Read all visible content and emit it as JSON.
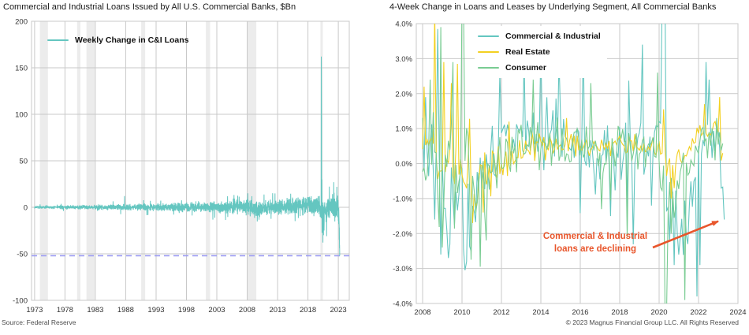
{
  "page": {
    "source_note": "Source: Federal Reserve",
    "copyright": "© 2023 Magnus Financial Group LLC. All Rights Reserved"
  },
  "colors": {
    "teal": "#64c6c0",
    "yellow": "#f3d021",
    "green": "#79cc92",
    "annotation_orange": "#e8562c",
    "reference_purple": "#9a9af2",
    "recession_band": "#ececec",
    "gridline": "#c9c9c9"
  },
  "chart_data": [
    {
      "type": "line",
      "title": "Commercial and Industrial Loans Issued by All U.S. Commercial Banks, $Bn",
      "xlabel": "",
      "ylabel": "",
      "xlim": [
        1972.5,
        2024.8
      ],
      "ylim": [
        -100,
        200
      ],
      "grid": true,
      "legend_position": "top-left-inside",
      "yticks": [
        [
          200,
          "200"
        ],
        [
          150,
          "150"
        ],
        [
          100,
          "100"
        ],
        [
          50,
          "50"
        ],
        [
          0,
          "0"
        ],
        [
          -50,
          "-50"
        ],
        [
          -100,
          "-100"
        ]
      ],
      "xticks": [
        [
          1973,
          "1973"
        ],
        [
          1978,
          "1978"
        ],
        [
          1983,
          "1983"
        ],
        [
          1988,
          "1988"
        ],
        [
          1993,
          "1993"
        ],
        [
          1998,
          "1998"
        ],
        [
          2003,
          "2003"
        ],
        [
          2008,
          "2008"
        ],
        [
          2013,
          "2013"
        ],
        [
          2018,
          "2018"
        ],
        [
          2023,
          "2023"
        ]
      ],
      "recession_bands": [
        [
          1973.87,
          1975.2
        ],
        [
          1980.0,
          1980.55
        ],
        [
          1981.55,
          1982.9
        ],
        [
          1990.55,
          1991.2
        ],
        [
          2001.2,
          2001.9
        ],
        [
          2007.95,
          2009.5
        ],
        [
          2020.05,
          2020.45
        ]
      ],
      "reference_line": {
        "y": -52,
        "style": "dashed"
      },
      "key_values": {
        "peak_2020": 162,
        "trough_2020": -38,
        "end_2023": -52
      },
      "series": [
        {
          "name": "Weekly Change in C&I Loans",
          "color": "#64c6c0",
          "seed": 7,
          "step_years": 0.01923,
          "x_start": 1973.0,
          "x_end": 2023.25,
          "mean": [
            [
              1973,
              0
            ],
            [
              2008,
              0.5
            ],
            [
              2009.5,
              -2
            ],
            [
              2011,
              0
            ],
            [
              2019.9,
              2
            ],
            [
              2020.35,
              -10
            ],
            [
              2020.8,
              -6
            ],
            [
              2021.5,
              0
            ],
            [
              2022.4,
              4
            ],
            [
              2022.9,
              2
            ],
            [
              2023.08,
              -5
            ],
            [
              2023.25,
              -48
            ]
          ],
          "amp": [
            [
              1973,
              1
            ],
            [
              1978,
              1.5
            ],
            [
              1983,
              2
            ],
            [
              1988,
              2.5
            ],
            [
              1993,
              3
            ],
            [
              1998,
              4
            ],
            [
              2003,
              4.5
            ],
            [
              2008,
              7
            ],
            [
              2009,
              7
            ],
            [
              2012,
              6
            ],
            [
              2016,
              7
            ],
            [
              2019,
              8
            ],
            [
              2020,
              10
            ],
            [
              2021,
              10
            ],
            [
              2023.25,
              11
            ]
          ],
          "spikes": [
            [
              1987.8,
              12
            ],
            [
              2020.19,
              162
            ],
            [
              2020.21,
              148
            ],
            [
              2020.23,
              96
            ],
            [
              2020.29,
              30
            ],
            [
              2020.38,
              -20
            ],
            [
              2020.46,
              -38
            ],
            [
              2020.55,
              -30
            ],
            [
              2020.65,
              -25
            ],
            [
              2021.0,
              -15
            ],
            [
              2022.75,
              22
            ],
            [
              2023.05,
              -18
            ],
            [
              2023.15,
              -35
            ],
            [
              2023.19,
              -44
            ],
            [
              2023.23,
              -52
            ],
            [
              2023.25,
              -52
            ]
          ]
        }
      ]
    },
    {
      "type": "line",
      "title": "4-Week Change in Loans and Leases by Underlying Segment, All Commercial Banks",
      "xlabel": "",
      "ylabel": "",
      "xlim": [
        2007.68,
        2024.0
      ],
      "ylim": [
        -4,
        4
      ],
      "grid": true,
      "legend_position": "top-inside",
      "yticks": [
        [
          4,
          "4.0%"
        ],
        [
          3,
          "3.0%"
        ],
        [
          2,
          "2.0%"
        ],
        [
          1,
          "1.0%"
        ],
        [
          0,
          "0.0%"
        ],
        [
          -1,
          "-1.0%"
        ],
        [
          -2,
          "-2.0%"
        ],
        [
          -3,
          "-3.0%"
        ],
        [
          -4,
          "-4.0%"
        ]
      ],
      "xticks": [
        [
          2008,
          "2008"
        ],
        [
          2010,
          "2010"
        ],
        [
          2012,
          "2012"
        ],
        [
          2014,
          "2014"
        ],
        [
          2016,
          "2016"
        ],
        [
          2018,
          "2018"
        ],
        [
          2020,
          "2020"
        ],
        [
          2022,
          "2022"
        ],
        [
          2024,
          "2024"
        ]
      ],
      "annotation": {
        "lines": [
          "Commercial & Industrial",
          "loans are declining"
        ],
        "color": "#e8562c"
      },
      "arrow": {
        "from": [
          2019.68,
          -2.4
        ],
        "to": [
          2023.0,
          -1.65
        ],
        "color": "#e8562c"
      },
      "key_values": {
        "ci_end_2023": -1.6,
        "real_estate_end_spike": 1.9,
        "consumer_end": 0.4
      },
      "series": [
        {
          "name": "Commercial & Industrial",
          "color": "#64c6c0",
          "seed": 5,
          "step_years": 0.0769,
          "x_start": 2008.0,
          "x_end": 2023.33,
          "mean": [
            [
              2008,
              0.4
            ],
            [
              2008.7,
              0.1
            ],
            [
              2009.2,
              -1.2
            ],
            [
              2010.3,
              -1.4
            ],
            [
              2010.9,
              -0.4
            ],
            [
              2011.4,
              0.4
            ],
            [
              2012.2,
              0.9
            ],
            [
              2015.5,
              0.8
            ],
            [
              2016.5,
              0.3
            ],
            [
              2017.5,
              0.2
            ],
            [
              2019.7,
              0.5
            ],
            [
              2020.1,
              1.2
            ],
            [
              2020.5,
              -1.2
            ],
            [
              2021.1,
              -1.6
            ],
            [
              2021.6,
              -0.8
            ],
            [
              2021.9,
              0.2
            ],
            [
              2022.4,
              1.0
            ],
            [
              2022.8,
              0.8
            ],
            [
              2023.05,
              0.1
            ],
            [
              2023.33,
              -1.2
            ]
          ],
          "amp": [
            [
              2008,
              1.3
            ],
            [
              2010.5,
              1.2
            ],
            [
              2011.5,
              0.85
            ],
            [
              2019.7,
              0.85
            ],
            [
              2020.4,
              1.3
            ],
            [
              2021.6,
              1.0
            ],
            [
              2022.2,
              0.7
            ],
            [
              2023.33,
              0.45
            ]
          ],
          "spikes": [
            [
              2008.12,
              1.9
            ],
            [
              2008.6,
              -1.6
            ],
            [
              2008.75,
              3.85
            ],
            [
              2008.95,
              -2.6
            ],
            [
              2009.3,
              -2.7
            ],
            [
              2010.15,
              -3.05
            ],
            [
              2010.45,
              -2.5
            ],
            [
              2011.9,
              2.6
            ],
            [
              2013.15,
              3.0
            ],
            [
              2014.0,
              3.3
            ],
            [
              2014.95,
              3.0
            ],
            [
              2016.15,
              3.55
            ],
            [
              2017.5,
              -1.5
            ],
            [
              2019.15,
              3.4
            ],
            [
              2019.6,
              -1.2
            ],
            [
              2020.16,
              4.6
            ],
            [
              2020.22,
              4.9
            ],
            [
              2020.28,
              4.4
            ],
            [
              2020.55,
              -2.2
            ],
            [
              2020.75,
              -2.9
            ],
            [
              2021.0,
              -2.6
            ],
            [
              2021.45,
              -2.3
            ],
            [
              2021.95,
              -3.8
            ],
            [
              2022.1,
              -2.9
            ],
            [
              2022.4,
              2.9
            ],
            [
              2022.55,
              2.4
            ],
            [
              2023.0,
              1.0
            ],
            [
              2023.15,
              -0.7
            ],
            [
              2023.28,
              -1.0
            ],
            [
              2023.33,
              -1.6
            ]
          ]
        },
        {
          "name": "Real Estate",
          "color": "#f3d021",
          "seed": 9,
          "step_years": 0.0769,
          "x_start": 2008.0,
          "x_end": 2023.3,
          "mean": [
            [
              2008,
              0.35
            ],
            [
              2009,
              0
            ],
            [
              2009.8,
              -0.4
            ],
            [
              2010.8,
              -0.55
            ],
            [
              2011.8,
              -0.1
            ],
            [
              2013,
              0.25
            ],
            [
              2014,
              0.5
            ],
            [
              2019.5,
              0.5
            ],
            [
              2020.3,
              0.2
            ],
            [
              2020.8,
              -0.25
            ],
            [
              2021.3,
              0.3
            ],
            [
              2022,
              0.75
            ],
            [
              2022.6,
              1.0
            ],
            [
              2023.05,
              0.8
            ],
            [
              2023.3,
              -0.4
            ]
          ],
          "amp": [
            [
              2008,
              0.85
            ],
            [
              2010,
              0.75
            ],
            [
              2012,
              0.4
            ],
            [
              2014,
              0.28
            ],
            [
              2019.5,
              0.28
            ],
            [
              2020.3,
              0.45
            ],
            [
              2021.5,
              0.3
            ],
            [
              2023.3,
              0.35
            ]
          ],
          "spikes": [
            [
              2008.1,
              2.2
            ],
            [
              2008.6,
              4.4
            ],
            [
              2009.1,
              2.9
            ],
            [
              2009.45,
              2.3
            ],
            [
              2009.75,
              2.85
            ],
            [
              2010.5,
              -1.7
            ],
            [
              2011.1,
              -1.4
            ],
            [
              2012.4,
              1.2
            ],
            [
              2015.3,
              1.3
            ],
            [
              2020.25,
              1.55
            ],
            [
              2020.6,
              -1.0
            ],
            [
              2022.3,
              1.7
            ],
            [
              2023.08,
              1.9
            ],
            [
              2023.2,
              0.3
            ],
            [
              2023.3,
              -0.7
            ]
          ]
        },
        {
          "name": "Consumer",
          "color": "#79cc92",
          "seed": 3,
          "step_years": 0.0769,
          "x_start": 2008.0,
          "x_end": 2023.3,
          "mean": [
            [
              2008,
              0.2
            ],
            [
              2009.2,
              -0.2
            ],
            [
              2010.2,
              -0.6
            ],
            [
              2011.0,
              -0.7
            ],
            [
              2011.8,
              0.2
            ],
            [
              2012.5,
              0.5
            ],
            [
              2019.8,
              0.55
            ],
            [
              2020.35,
              -1.2
            ],
            [
              2020.9,
              -0.5
            ],
            [
              2021.4,
              -0.2
            ],
            [
              2022,
              0.5
            ],
            [
              2023.3,
              0.5
            ]
          ],
          "amp": [
            [
              2008,
              1.2
            ],
            [
              2010.5,
              1.1
            ],
            [
              2011.8,
              0.7
            ],
            [
              2012.8,
              0.55
            ],
            [
              2019.8,
              0.55
            ],
            [
              2020.6,
              1.0
            ],
            [
              2021.6,
              0.5
            ],
            [
              2023.3,
              0.35
            ]
          ],
          "spikes": [
            [
              2008.35,
              2.4
            ],
            [
              2008.9,
              3.9
            ],
            [
              2009.0,
              -2.4
            ],
            [
              2009.5,
              2.9
            ],
            [
              2010.02,
              4.7
            ],
            [
              2010.1,
              4.5
            ],
            [
              2010.45,
              -2.75
            ],
            [
              2010.9,
              -2.95
            ],
            [
              2011.2,
              -2.2
            ],
            [
              2013.6,
              2.4
            ],
            [
              2016.5,
              2.3
            ],
            [
              2017.1,
              -1.3
            ],
            [
              2018.35,
              -2.1
            ],
            [
              2019.9,
              2.6
            ],
            [
              2020.3,
              -4.4
            ],
            [
              2020.4,
              -4.2
            ],
            [
              2020.65,
              -2.0
            ],
            [
              2021.3,
              -3.9
            ],
            [
              2022.9,
              1.3
            ],
            [
              2023.3,
              0.4
            ]
          ]
        }
      ]
    }
  ]
}
